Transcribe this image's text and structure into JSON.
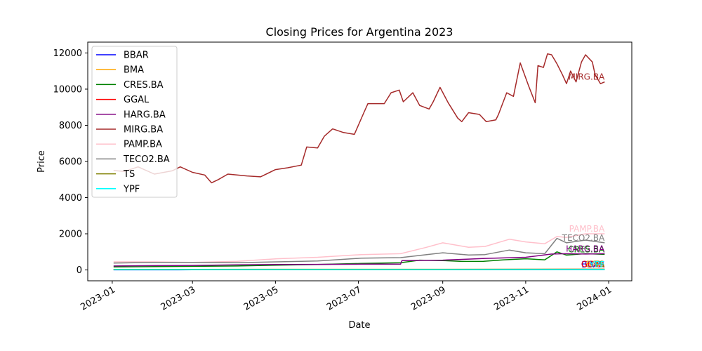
{
  "chart_data": {
    "type": "line",
    "title": "Closing Prices for Argentina 2023",
    "xlabel": "Date",
    "ylabel": "Price",
    "xlim": [
      "2022-12-14",
      "2024-01-18"
    ],
    "ylim": [
      -600,
      12600
    ],
    "x_ticks": [
      "2023-01",
      "2023-03",
      "2023-05",
      "2023-07",
      "2023-09",
      "2023-11",
      "2024-01"
    ],
    "y_ticks": [
      0,
      2000,
      4000,
      6000,
      8000,
      10000,
      12000
    ],
    "grid": false,
    "legend_position": "upper-left",
    "series": [
      {
        "name": "BBAR",
        "color": "#0000ff",
        "end_label": "BBAR",
        "points": [
          [
            "2023-01-02",
            7
          ],
          [
            "2023-03-01",
            9
          ],
          [
            "2023-05-02",
            12
          ],
          [
            "2023-07-03",
            16
          ],
          [
            "2023-09-01",
            18
          ],
          [
            "2023-11-01",
            22
          ],
          [
            "2023-12-29",
            25
          ]
        ]
      },
      {
        "name": "BMA",
        "color": "#ffa500",
        "end_label": "BMA",
        "points": [
          [
            "2023-01-02",
            11
          ],
          [
            "2023-03-01",
            13
          ],
          [
            "2023-05-02",
            16
          ],
          [
            "2023-07-03",
            22
          ],
          [
            "2023-09-01",
            26
          ],
          [
            "2023-11-01",
            30
          ],
          [
            "2023-12-29",
            38
          ]
        ]
      },
      {
        "name": "CRES.BA",
        "color": "#008000",
        "end_label": "CRES.BA",
        "points": [
          [
            "2023-01-02",
            170
          ],
          [
            "2023-02-01",
            190
          ],
          [
            "2023-03-01",
            200
          ],
          [
            "2023-04-03",
            220
          ],
          [
            "2023-05-02",
            260
          ],
          [
            "2023-06-01",
            300
          ],
          [
            "2023-07-03",
            360
          ],
          [
            "2023-08-01",
            400
          ],
          [
            "2023-08-15",
            540
          ],
          [
            "2023-09-01",
            520
          ],
          [
            "2023-09-15",
            470
          ],
          [
            "2023-10-01",
            480
          ],
          [
            "2023-10-16",
            560
          ],
          [
            "2023-11-01",
            620
          ],
          [
            "2023-11-15",
            560
          ],
          [
            "2023-11-24",
            1000
          ],
          [
            "2023-12-01",
            820
          ],
          [
            "2023-12-15",
            900
          ],
          [
            "2023-12-29",
            860
          ]
        ]
      },
      {
        "name": "GGAL",
        "color": "#ff0000",
        "end_label": "GGAL",
        "points": [
          [
            "2023-01-02",
            9
          ],
          [
            "2023-03-01",
            11
          ],
          [
            "2023-05-02",
            14
          ],
          [
            "2023-07-03",
            20
          ],
          [
            "2023-09-01",
            24
          ],
          [
            "2023-11-01",
            28
          ],
          [
            "2023-12-29",
            35
          ]
        ]
      },
      {
        "name": "HARG.BA",
        "color": "#800080",
        "end_label": "HARG.BA",
        "points": [
          [
            "2023-01-02",
            220
          ],
          [
            "2023-02-01",
            240
          ],
          [
            "2023-03-01",
            250
          ],
          [
            "2023-04-03",
            280
          ],
          [
            "2023-05-02",
            300
          ],
          [
            "2023-06-01",
            310
          ],
          [
            "2023-07-03",
            320
          ],
          [
            "2023-08-01",
            320
          ],
          [
            "2023-08-02",
            520
          ],
          [
            "2023-09-01",
            540
          ],
          [
            "2023-09-20",
            600
          ],
          [
            "2023-10-02",
            640
          ],
          [
            "2023-11-01",
            700
          ],
          [
            "2023-11-20",
            880
          ],
          [
            "2023-12-01",
            900
          ],
          [
            "2023-12-15",
            880
          ],
          [
            "2023-12-29",
            900
          ]
        ]
      },
      {
        "name": "MIRG.BA",
        "color": "#a52a2a",
        "end_label": "MIRG.BA",
        "points": [
          [
            "2023-01-02",
            5500
          ],
          [
            "2023-01-10",
            5450
          ],
          [
            "2023-01-20",
            5700
          ],
          [
            "2023-02-01",
            5300
          ],
          [
            "2023-02-14",
            5480
          ],
          [
            "2023-02-20",
            5700
          ],
          [
            "2023-03-01",
            5400
          ],
          [
            "2023-03-10",
            5250
          ],
          [
            "2023-03-15",
            4820
          ],
          [
            "2023-03-20",
            5000
          ],
          [
            "2023-03-27",
            5300
          ],
          [
            "2023-04-10",
            5200
          ],
          [
            "2023-04-20",
            5150
          ],
          [
            "2023-05-01",
            5550
          ],
          [
            "2023-05-10",
            5650
          ],
          [
            "2023-05-20",
            5800
          ],
          [
            "2023-05-24",
            6800
          ],
          [
            "2023-06-01",
            6750
          ],
          [
            "2023-06-06",
            7400
          ],
          [
            "2023-06-12",
            7800
          ],
          [
            "2023-06-20",
            7600
          ],
          [
            "2023-06-28",
            7500
          ],
          [
            "2023-07-05",
            8700
          ],
          [
            "2023-07-08",
            9200
          ],
          [
            "2023-07-20",
            9200
          ],
          [
            "2023-07-25",
            9800
          ],
          [
            "2023-07-31",
            9950
          ],
          [
            "2023-08-03",
            9300
          ],
          [
            "2023-08-10",
            9800
          ],
          [
            "2023-08-15",
            9100
          ],
          [
            "2023-08-22",
            8900
          ],
          [
            "2023-08-25",
            9300
          ],
          [
            "2023-08-30",
            10100
          ],
          [
            "2023-09-05",
            9250
          ],
          [
            "2023-09-12",
            8400
          ],
          [
            "2023-09-15",
            8200
          ],
          [
            "2023-09-20",
            8700
          ],
          [
            "2023-09-28",
            8600
          ],
          [
            "2023-10-03",
            8200
          ],
          [
            "2023-10-10",
            8300
          ],
          [
            "2023-10-12",
            8600
          ],
          [
            "2023-10-18",
            9800
          ],
          [
            "2023-10-23",
            9600
          ],
          [
            "2023-10-28",
            11450
          ],
          [
            "2023-11-03",
            10200
          ],
          [
            "2023-11-08",
            9250
          ],
          [
            "2023-11-10",
            11300
          ],
          [
            "2023-11-14",
            11200
          ],
          [
            "2023-11-17",
            11950
          ],
          [
            "2023-11-20",
            11900
          ],
          [
            "2023-11-24",
            11400
          ],
          [
            "2023-11-28",
            10800
          ],
          [
            "2023-12-01",
            10300
          ],
          [
            "2023-12-04",
            11000
          ],
          [
            "2023-12-08",
            10400
          ],
          [
            "2023-12-12",
            11500
          ],
          [
            "2023-12-15",
            11900
          ],
          [
            "2023-12-20",
            11500
          ],
          [
            "2023-12-22",
            10800
          ],
          [
            "2023-12-26",
            10300
          ],
          [
            "2023-12-29",
            10400
          ]
        ]
      },
      {
        "name": "PAMP.BA",
        "color": "#ffc0cb",
        "end_label": "PAMP.BA",
        "points": [
          [
            "2023-01-02",
            450
          ],
          [
            "2023-02-01",
            450
          ],
          [
            "2023-03-01",
            420
          ],
          [
            "2023-04-03",
            480
          ],
          [
            "2023-05-02",
            620
          ],
          [
            "2023-06-01",
            700
          ],
          [
            "2023-07-03",
            850
          ],
          [
            "2023-08-01",
            900
          ],
          [
            "2023-08-20",
            1250
          ],
          [
            "2023-09-01",
            1500
          ],
          [
            "2023-09-20",
            1250
          ],
          [
            "2023-10-02",
            1300
          ],
          [
            "2023-10-20",
            1700
          ],
          [
            "2023-11-01",
            1550
          ],
          [
            "2023-11-15",
            1450
          ],
          [
            "2023-11-24",
            1850
          ],
          [
            "2023-12-01",
            1800
          ],
          [
            "2023-12-15",
            2000
          ],
          [
            "2023-12-29",
            2000
          ]
        ]
      },
      {
        "name": "TECO2.BA",
        "color": "#808080",
        "end_label": "TECO2.BA",
        "points": [
          [
            "2023-01-02",
            380
          ],
          [
            "2023-02-01",
            420
          ],
          [
            "2023-03-01",
            420
          ],
          [
            "2023-04-03",
            400
          ],
          [
            "2023-05-02",
            450
          ],
          [
            "2023-06-01",
            500
          ],
          [
            "2023-07-03",
            650
          ],
          [
            "2023-08-01",
            680
          ],
          [
            "2023-08-15",
            800
          ],
          [
            "2023-09-01",
            950
          ],
          [
            "2023-09-20",
            830
          ],
          [
            "2023-10-02",
            850
          ],
          [
            "2023-10-20",
            1100
          ],
          [
            "2023-11-01",
            950
          ],
          [
            "2023-11-15",
            900
          ],
          [
            "2023-11-24",
            1750
          ],
          [
            "2023-12-01",
            1500
          ],
          [
            "2023-12-15",
            1650
          ],
          [
            "2023-12-29",
            1500
          ]
        ]
      },
      {
        "name": "TS",
        "color": "#808000",
        "end_label": "TS",
        "points": [
          [
            "2023-01-02",
            30
          ],
          [
            "2023-03-01",
            33
          ],
          [
            "2023-05-02",
            35
          ],
          [
            "2023-07-03",
            36
          ],
          [
            "2023-09-01",
            38
          ],
          [
            "2023-11-01",
            40
          ],
          [
            "2023-12-29",
            42
          ]
        ]
      },
      {
        "name": "YPF",
        "color": "#00ffff",
        "end_label": "YPF",
        "points": [
          [
            "2023-01-02",
            10
          ],
          [
            "2023-03-01",
            11
          ],
          [
            "2023-05-02",
            12
          ],
          [
            "2023-07-03",
            13
          ],
          [
            "2023-09-01",
            15
          ],
          [
            "2023-11-01",
            18
          ],
          [
            "2023-12-29",
            22
          ]
        ]
      }
    ]
  }
}
